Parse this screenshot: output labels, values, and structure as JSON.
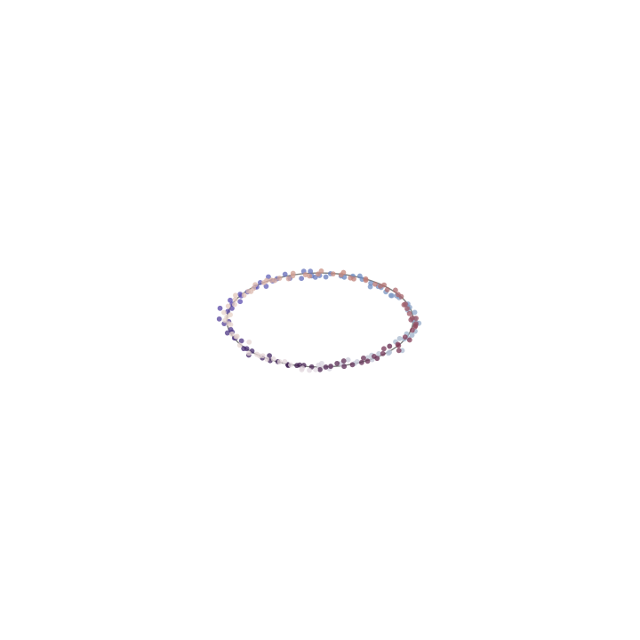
{
  "chart_data": {
    "type": "scatter",
    "title": "",
    "xlabel": "",
    "ylabel": "",
    "axes_visible": false,
    "grid": false,
    "legend": "none",
    "ellipse": {
      "cx": 0.0,
      "cy": 0.0,
      "rx": 1.0,
      "ry": 0.505,
      "color": "#808080"
    },
    "xlim": [
      -2.5,
      2.5
    ],
    "ylim": [
      -2.5,
      2.5
    ],
    "colormap": "twilight",
    "colormap_stops": [
      "#e2d9e2",
      "#a0b4cb",
      "#6b89bf",
      "#5c4cb0",
      "#3d1e4f",
      "#863f59",
      "#c5877b",
      "#e6d2c8",
      "#e2d9e2"
    ],
    "point_alpha": 0.75,
    "x": [
      0.0,
      0.041,
      0.118,
      -0.016,
      0.018,
      0.101,
      0.246,
      0.219,
      0.302,
      0.398,
      0.371,
      0.515,
      0.56,
      0.555,
      0.614,
      0.631,
      0.735,
      0.746,
      0.747,
      0.883,
      0.811,
      0.855,
      0.904,
      0.95,
      0.93,
      0.988,
      1.021,
      1.035,
      1.062,
      0.997,
      1.016,
      0.941,
      1.017,
      0.963,
      0.929,
      0.914,
      0.944,
      0.849,
      0.771,
      0.821,
      0.762,
      0.707,
      0.656,
      0.54,
      0.626,
      0.545,
      0.453,
      0.428,
      0.353,
      0.261,
      0.226,
      0.113,
      0.063,
      -0.004,
      -0.05,
      -0.088,
      -0.103,
      -0.174,
      -0.199,
      -0.323,
      -0.375,
      -0.461,
      -0.509,
      -0.554,
      -0.578,
      -0.641,
      -0.678,
      -0.696,
      -0.777,
      -0.857,
      -0.846,
      -0.857,
      -0.964,
      -0.944,
      -1.073,
      -0.945,
      -0.99,
      -1.081,
      -1.028,
      -0.979,
      -0.958,
      -0.942,
      -0.994,
      -0.843,
      -0.918,
      -0.908,
      -0.819,
      -0.786,
      -0.73,
      -0.765,
      -0.618,
      -0.543,
      -0.535,
      -0.452,
      -0.345,
      -0.34,
      -0.248,
      -0.218,
      -0.174,
      -0.089,
      0.0,
      0.063,
      0.115,
      0.183,
      0.259,
      0.255,
      0.348,
      0.447,
      0.467,
      0.511,
      0.581,
      0.613,
      0.675,
      0.686,
      0.747,
      0.847,
      0.835,
      0.843,
      0.914,
      0.962,
      0.991,
      1.026,
      1.02,
      1.03,
      0.976,
      1.031,
      0.99,
      0.96,
      0.935,
      0.917,
      0.901,
      0.872,
      0.839,
      0.81,
      0.723,
      0.688,
      0.648,
      0.592,
      0.492,
      0.491,
      0.363,
      0.327,
      0.252,
      0.227,
      0.141,
      0.014,
      -0.02,
      -0.112,
      -0.156,
      -0.289,
      -0.292,
      -0.338,
      -0.435,
      -0.486,
      -0.523,
      -0.573,
      -0.603,
      -0.695,
      -0.714,
      -0.741,
      -0.768,
      -0.815,
      -0.907,
      -0.91,
      -0.985,
      -0.917,
      -0.963,
      -1.031,
      -1.0,
      -1.018,
      -0.979,
      -0.959,
      -0.946,
      -0.89,
      -0.902,
      -0.861,
      -0.761,
      -0.763,
      -0.678,
      -0.648,
      -0.613,
      -0.57,
      -0.5,
      -0.432,
      -0.378,
      -0.315,
      -0.196,
      -0.189,
      -0.114,
      -0.047
    ],
    "y": [
      -0.511,
      -0.511,
      -0.494,
      -0.485,
      -0.466,
      -0.523,
      -0.476,
      -0.469,
      -0.428,
      -0.448,
      -0.468,
      -0.404,
      -0.425,
      -0.378,
      -0.409,
      -0.362,
      -0.357,
      -0.346,
      -0.28,
      -0.328,
      -0.234,
      -0.199,
      -0.204,
      -0.197,
      -0.149,
      -0.163,
      -0.121,
      -0.029,
      -0.035,
      -0.003,
      0.014,
      0.106,
      0.082,
      0.136,
      0.163,
      0.165,
      0.172,
      0.24,
      0.262,
      0.26,
      0.263,
      0.302,
      0.349,
      0.357,
      0.36,
      0.394,
      0.437,
      0.472,
      0.471,
      0.46,
      0.473,
      0.497,
      0.462,
      0.477,
      0.459,
      0.474,
      0.523,
      0.523,
      0.446,
      0.448,
      0.491,
      0.443,
      0.419,
      0.463,
      0.362,
      0.402,
      0.354,
      0.353,
      0.302,
      0.277,
      0.259,
      0.198,
      0.212,
      0.17,
      0.126,
      0.125,
      0.091,
      0.011,
      -0.039,
      -0.017,
      -0.103,
      -0.129,
      -0.139,
      -0.224,
      -0.193,
      -0.193,
      -0.307,
      -0.308,
      -0.333,
      -0.377,
      -0.408,
      -0.383,
      -0.436,
      -0.447,
      -0.479,
      -0.488,
      -0.488,
      -0.483,
      -0.487,
      -0.504,
      -0.533,
      -0.505,
      -0.497,
      -0.466,
      -0.498,
      -0.439,
      -0.48,
      -0.456,
      -0.409,
      -0.442,
      -0.39,
      -0.412,
      -0.361,
      -0.308,
      -0.282,
      -0.328,
      -0.261,
      -0.275,
      -0.183,
      -0.214,
      -0.11,
      -0.06,
      -0.074,
      -0.04,
      0.002,
      0.018,
      0.022,
      0.069,
      0.122,
      0.17,
      0.163,
      0.251,
      0.274,
      0.32,
      0.325,
      0.376,
      0.363,
      0.384,
      0.426,
      0.441,
      0.441,
      0.451,
      0.51,
      0.484,
      0.495,
      0.526,
      0.493,
      0.472,
      0.486,
      0.501,
      0.474,
      0.443,
      0.448,
      0.424,
      0.428,
      0.423,
      0.4,
      0.379,
      0.339,
      0.306,
      0.308,
      0.267,
      0.265,
      0.221,
      0.149,
      0.166,
      0.056,
      0.08,
      0.031,
      -0.005,
      -0.039,
      -0.05,
      -0.151,
      -0.175,
      -0.18,
      -0.27,
      -0.237,
      -0.356,
      -0.368,
      -0.385,
      -0.384,
      -0.421,
      -0.418,
      -0.449,
      -0.447,
      -0.482,
      -0.534,
      -0.517,
      -0.54,
      -0.533
    ]
  }
}
